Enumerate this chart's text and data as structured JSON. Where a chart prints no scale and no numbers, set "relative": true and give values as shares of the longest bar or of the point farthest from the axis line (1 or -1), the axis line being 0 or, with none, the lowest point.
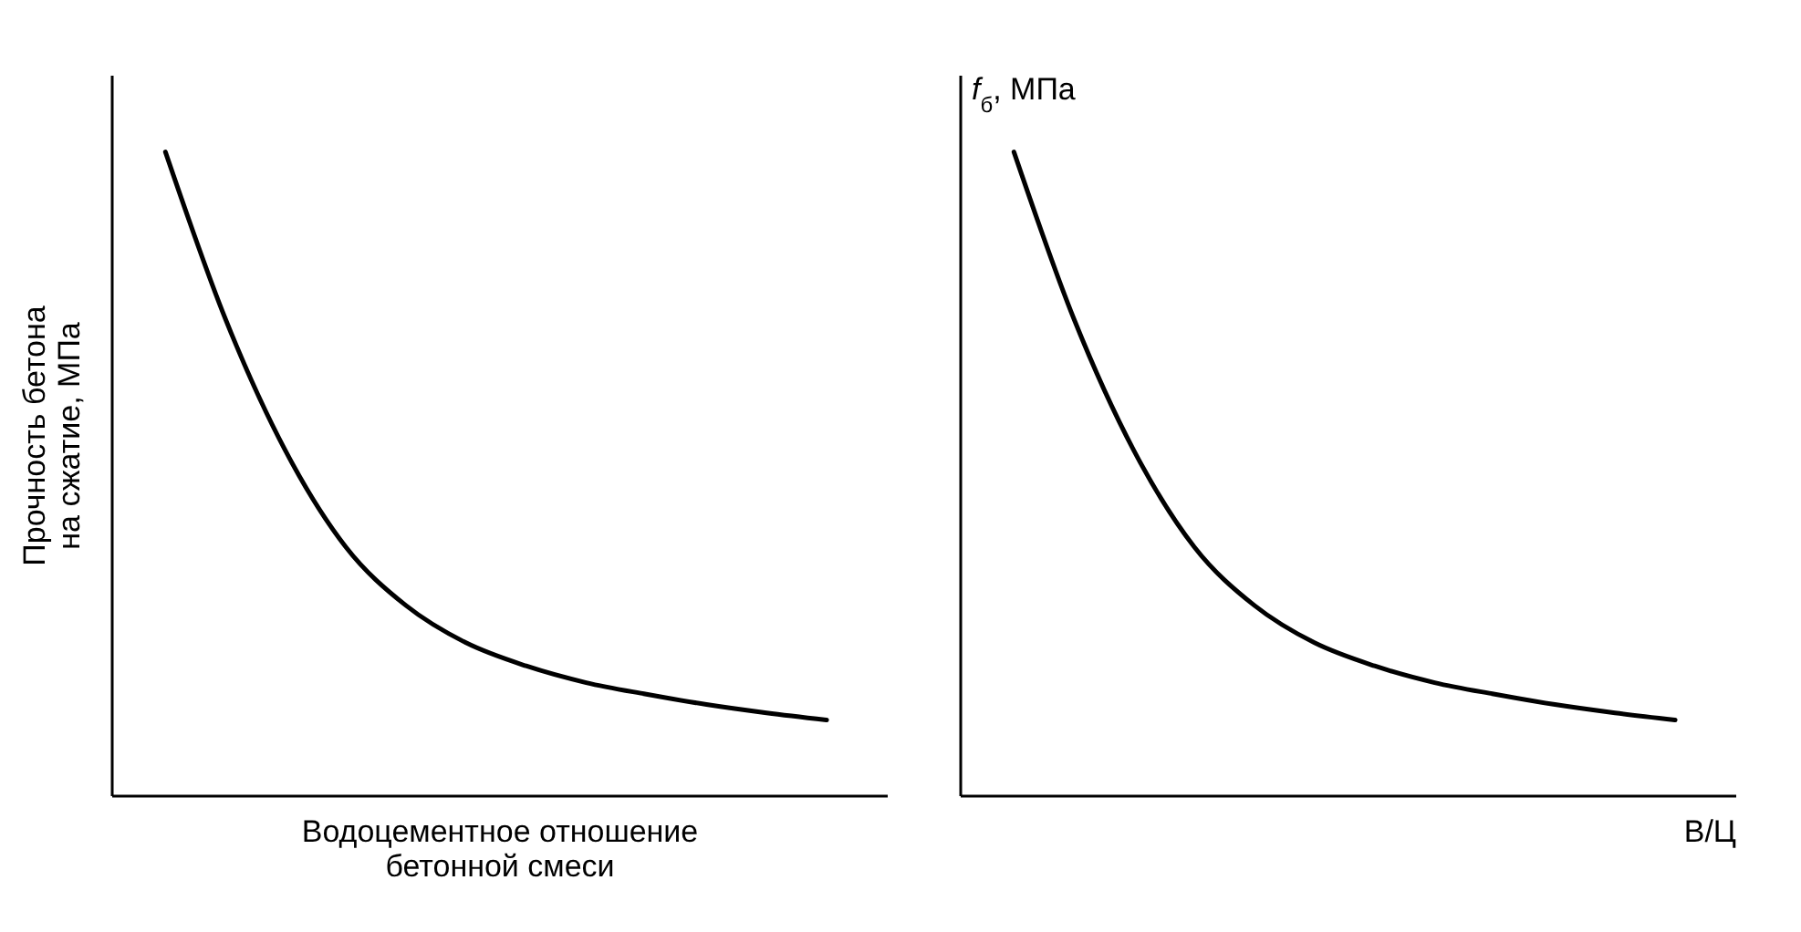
{
  "chart_data": [
    {
      "type": "line",
      "relative": true,
      "ylabel": "Прочность бетона на сжатие, МПа",
      "xlabel": "Водоцементное отношение бетонной смеси",
      "categories": [
        null,
        null,
        null,
        null,
        null,
        null,
        null,
        null,
        null,
        null,
        null,
        null
      ],
      "series": [
        {
          "color": "#000000",
          "values": [
            1,
            0.74,
            0.535,
            0.386,
            0.295,
            0.237,
            0.201,
            0.175,
            0.157,
            0.141,
            0.128,
            0.117
          ]
        }
      ],
      "grid": false,
      "legend": false,
      "marker": "none",
      "line_style": "solid"
    },
    {
      "type": "line",
      "relative": true,
      "ylabel": "f$_{б}$, МПа",
      "xlabel": "В/Ц",
      "categories": [
        null,
        null,
        null,
        null,
        null,
        null,
        null,
        null,
        null,
        null,
        null,
        null
      ],
      "series": [
        {
          "color": "#000000",
          "values": [
            1,
            0.74,
            0.535,
            0.386,
            0.295,
            0.237,
            0.201,
            0.175,
            0.157,
            0.141,
            0.128,
            0.117
          ]
        }
      ],
      "grid": false,
      "legend": false,
      "marker": "none",
      "line_style": "solid"
    }
  ]
}
